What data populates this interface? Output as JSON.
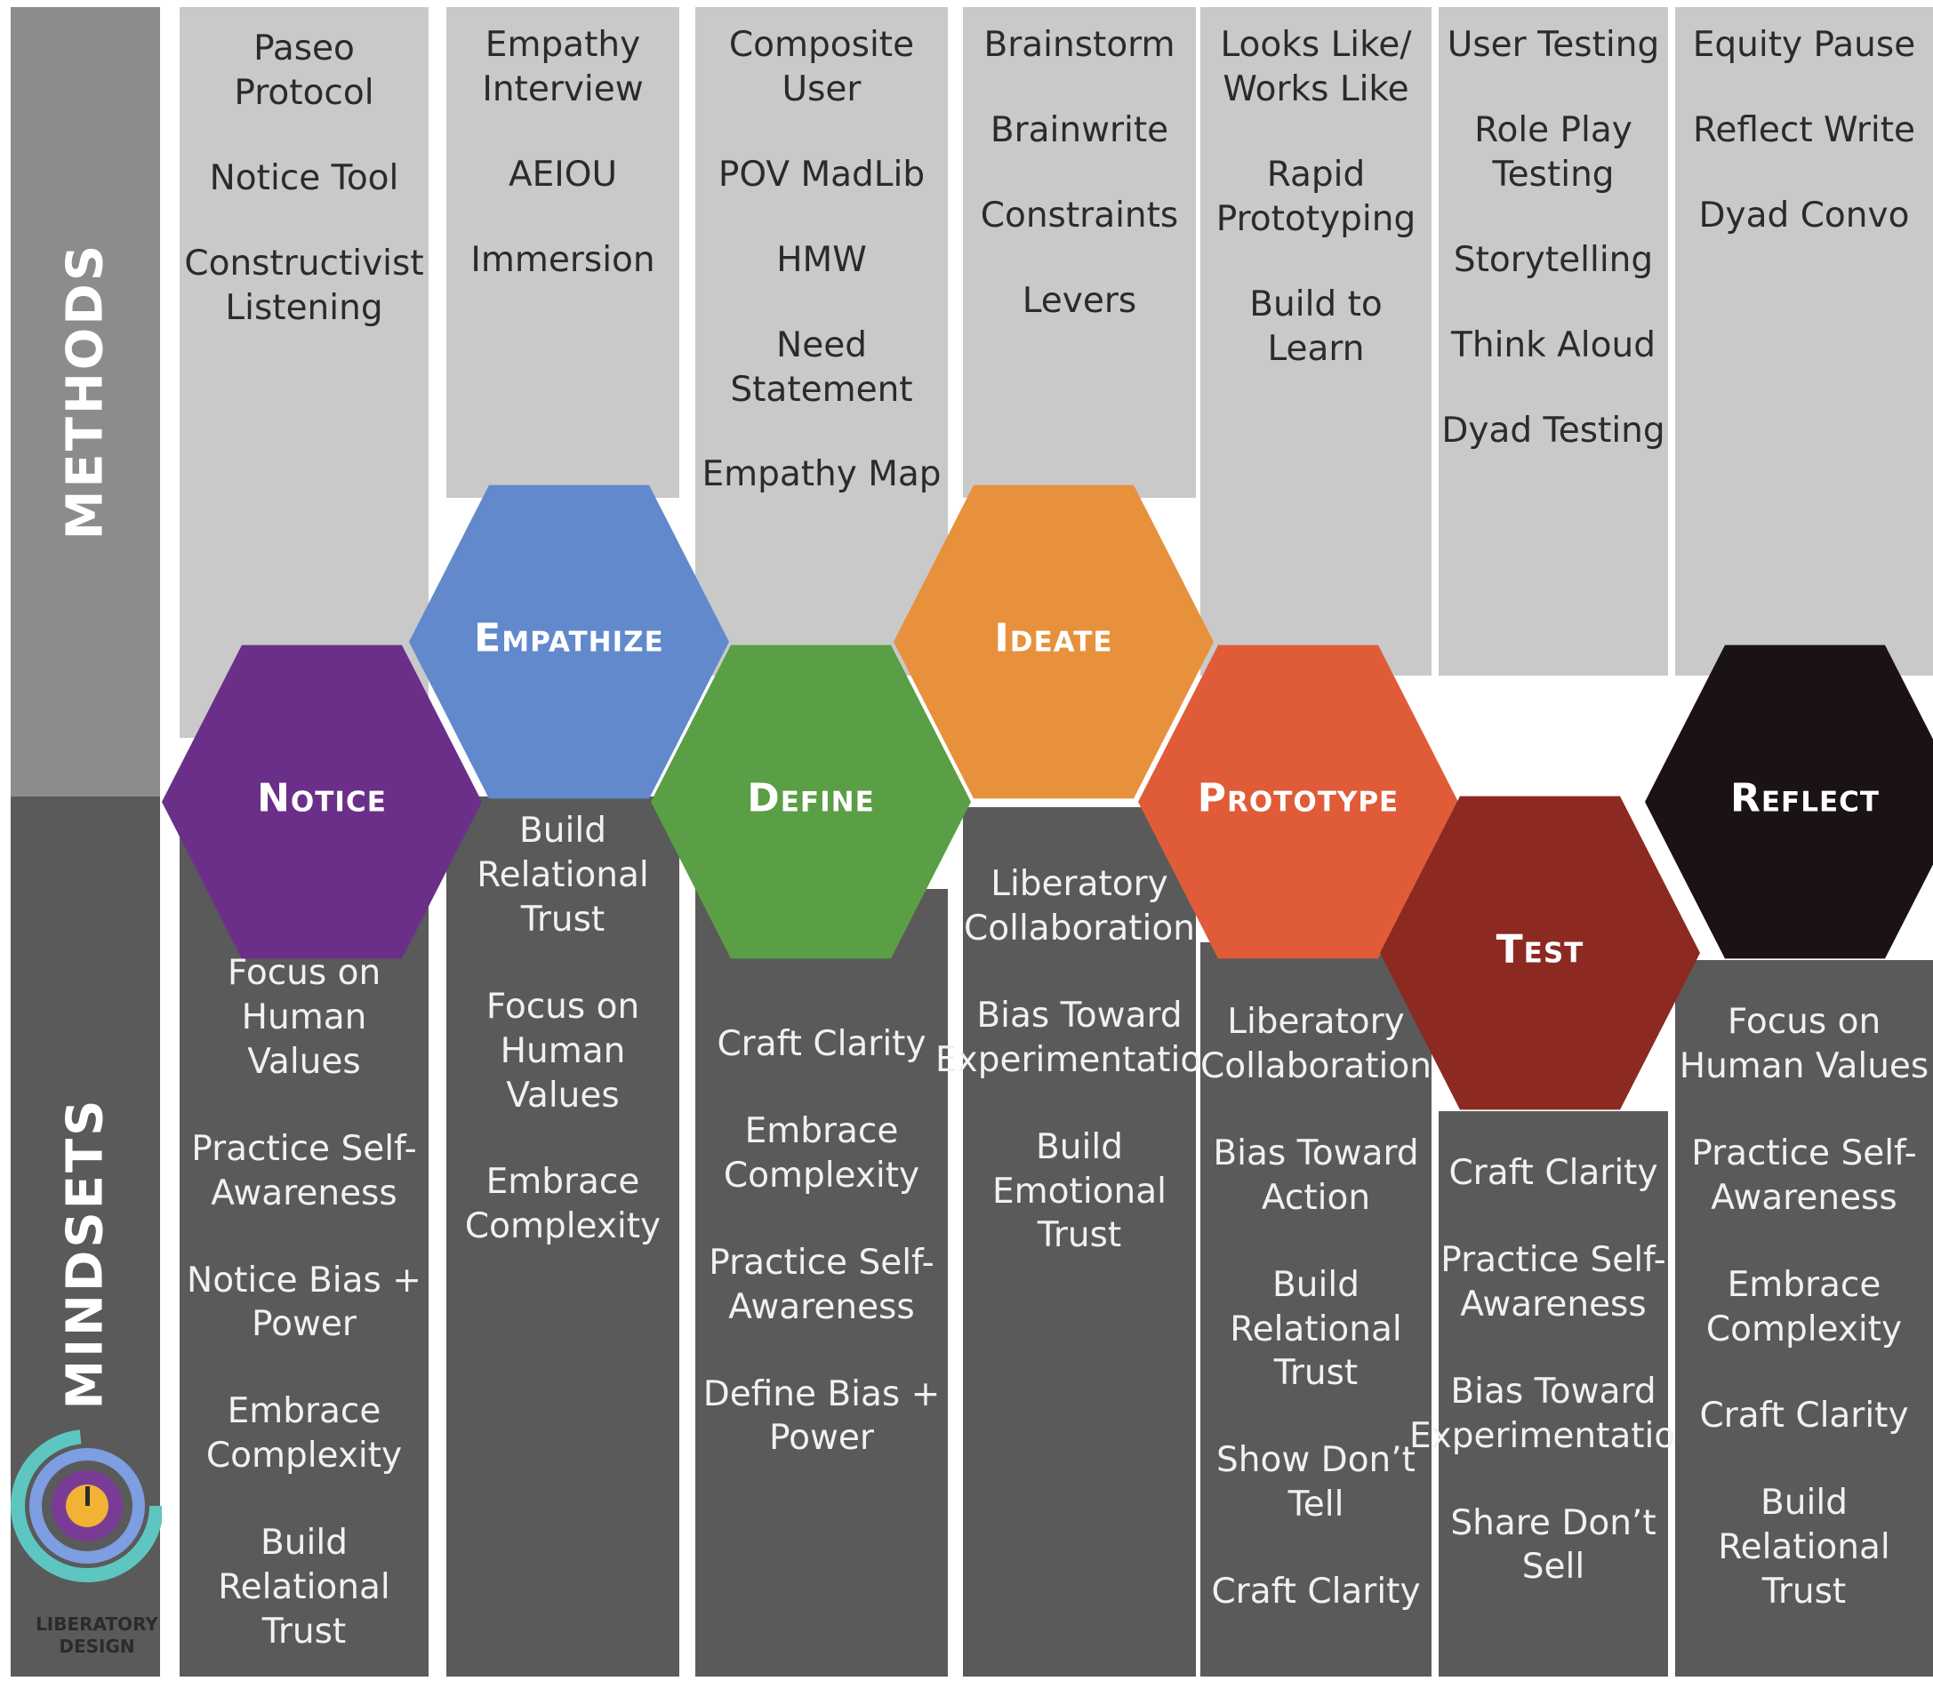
{
  "side_labels": {
    "methods": "METHODS",
    "mindsets": "MINDSETS"
  },
  "logo": {
    "line1": "LIBERATORY",
    "line2": "DESIGN"
  },
  "stages": [
    {
      "label": "Notice",
      "color": "#6b2f8a",
      "methods": [
        "Paseo Protocol",
        "Notice Tool",
        "Constructivist Listening"
      ],
      "mindsets": [
        "Focus on Human Values",
        "Practice Self-Awareness",
        "Notice Bias + Power",
        "Embrace Complexity",
        "Build Relational Trust"
      ]
    },
    {
      "label": "Empathize",
      "color": "#6289cc",
      "methods": [
        "Empathy Interview",
        "AEIOU",
        "Immersion"
      ],
      "mindsets": [
        "Build Relational Trust",
        "Focus on Human Values",
        "Embrace Complexity"
      ]
    },
    {
      "label": "Define",
      "color": "#5a9e45",
      "methods": [
        "Composite User",
        "POV MadLib",
        "HMW",
        "Need Statement",
        "Empathy Map"
      ],
      "mindsets": [
        "Craft Clarity",
        "Embrace Complexity",
        "Practice Self-Awareness",
        "Define Bias + Power"
      ]
    },
    {
      "label": "Ideate",
      "color": "#e8913c",
      "methods": [
        "Brainstorm",
        "Brainwrite",
        "Constraints",
        "Levers"
      ],
      "mindsets": [
        "Liberatory Collaboration",
        "Bias Toward Experimentation",
        "Build Emotional Trust"
      ]
    },
    {
      "label": "Prototype",
      "color": "#e05c38",
      "methods": [
        "Looks Like/ Works Like",
        "Rapid Prototyping",
        "Build to Learn"
      ],
      "mindsets": [
        "Liberatory Collaboration",
        "Bias Toward Action",
        "Build Relational Trust",
        "Show Don’t Tell",
        "Craft Clarity"
      ]
    },
    {
      "label": "Test",
      "color": "#8c2a22",
      "methods": [
        "User Testing",
        "Role Play Testing",
        "Storytelling",
        "Think Aloud",
        "Dyad Testing"
      ],
      "mindsets": [
        "Craft Clarity",
        "Practice Self-Awareness",
        "Bias Toward Experimentation",
        "Share Don’t Sell"
      ]
    },
    {
      "label": "Reflect",
      "color": "#1a1214",
      "methods": [
        "Equity Pause",
        "Reflect Write",
        "Dyad Convo"
      ],
      "mindsets": [
        "Focus on Human Values",
        "Practice Self-Awareness",
        "Embrace Complexity",
        "Craft Clarity",
        "Build Relational Trust"
      ]
    }
  ]
}
